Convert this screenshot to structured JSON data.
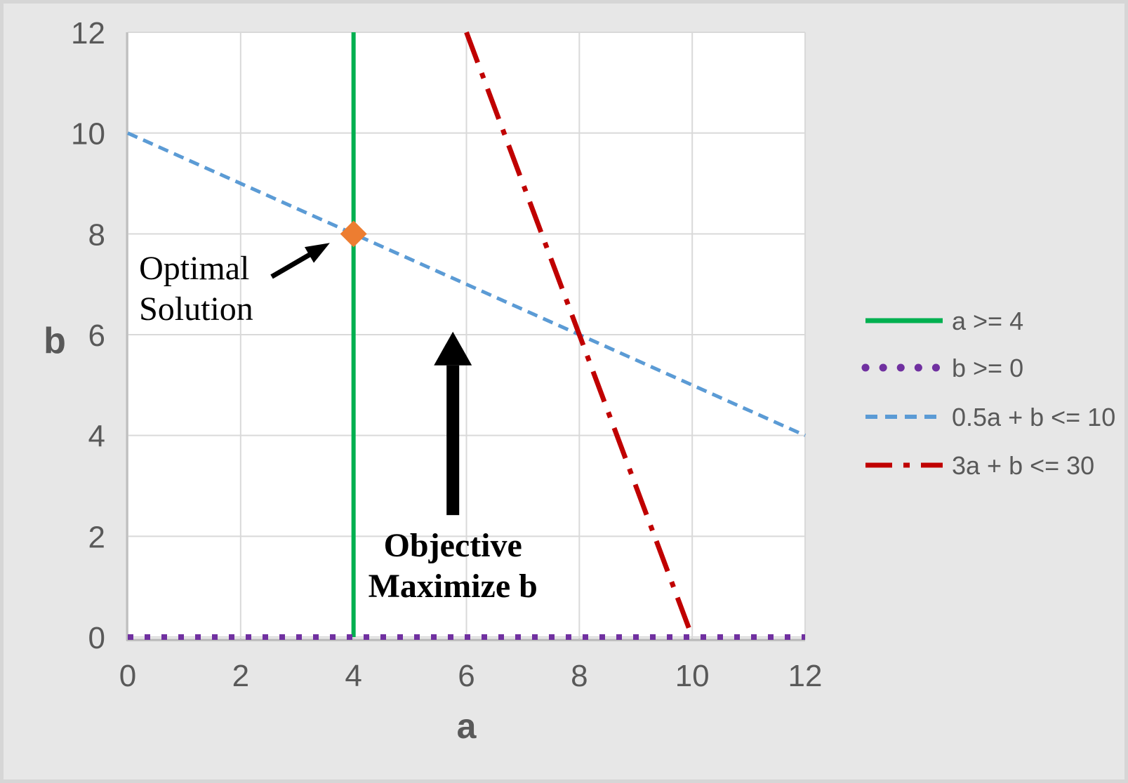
{
  "chart_data": {
    "type": "line",
    "title": "",
    "xlabel": "a",
    "ylabel": "b",
    "xlim": [
      0,
      12
    ],
    "ylim": [
      0,
      12
    ],
    "xticks": [
      0,
      2,
      4,
      6,
      8,
      10,
      12
    ],
    "yticks": [
      0,
      2,
      4,
      6,
      8,
      10,
      12
    ],
    "grid": true,
    "legend_position": "right",
    "series": [
      {
        "name": "a >= 4",
        "color": "#00B050",
        "style": "solid",
        "points": [
          [
            4,
            0
          ],
          [
            4,
            12
          ]
        ]
      },
      {
        "name": "b >= 0",
        "color": "#7030A0",
        "style": "dotted",
        "points": [
          [
            0,
            0
          ],
          [
            12,
            0
          ]
        ]
      },
      {
        "name": "0.5a + b <= 10",
        "color": "#5B9BD5",
        "style": "dashed",
        "points": [
          [
            0,
            10
          ],
          [
            12,
            4
          ]
        ]
      },
      {
        "name": "3a + b <= 30",
        "color": "#C00000",
        "style": "dashdot",
        "points": [
          [
            6,
            12
          ],
          [
            10,
            0
          ]
        ]
      }
    ],
    "markers": [
      {
        "name": "optimal-point",
        "x": 4,
        "y": 8,
        "shape": "diamond",
        "color": "#ED7D31"
      }
    ],
    "annotations": [
      {
        "name": "optimal-solution-label",
        "lines": [
          "Optimal",
          "Solution"
        ],
        "x": 0.2,
        "y": 7.1,
        "bold": false,
        "align": "start",
        "arrow": {
          "from": [
            2.55,
            7.15
          ],
          "to": [
            3.58,
            7.82
          ]
        }
      },
      {
        "name": "objective-label",
        "lines": [
          "Objective",
          "Maximize b"
        ],
        "x": 5.76,
        "y": 1.6,
        "bold": true,
        "align": "middle",
        "arrow_up": {
          "x": 5.76,
          "from": 2.42,
          "to": 6.06
        }
      }
    ],
    "colors": {
      "background": "#E7E7E7",
      "plot_background": "#FFFFFF",
      "gridline": "#D9D9D9",
      "axis_line": "#BFBFBF",
      "text": "#595959",
      "annotation": "#000000"
    }
  }
}
